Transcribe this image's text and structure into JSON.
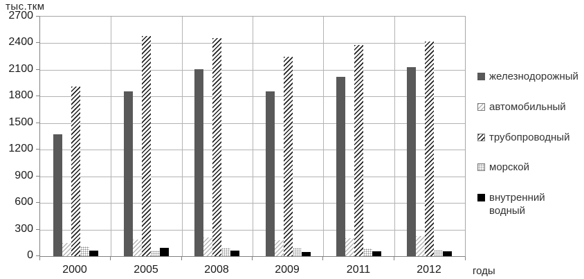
{
  "chart_data": {
    "type": "bar",
    "title": "",
    "xlabel": "годы",
    "ylabel": "тыс.ткм",
    "categories": [
      "2000",
      "2005",
      "2008",
      "2009",
      "2011",
      "2012"
    ],
    "series": [
      {
        "key": "railway",
        "name": "железнодорожный",
        "pattern": "solid-dark",
        "values": [
          1370,
          1860,
          2110,
          1860,
          2020,
          2130
        ]
      },
      {
        "key": "automobile",
        "name": "автомобильный",
        "pattern": "light-hatch",
        "values": [
          150,
          190,
          210,
          180,
          200,
          225
        ]
      },
      {
        "key": "pipeline",
        "name": "трубопроводный",
        "pattern": "dark-hatch",
        "values": [
          1910,
          2480,
          2460,
          2250,
          2380,
          2420
        ]
      },
      {
        "key": "maritime",
        "name": "морской",
        "pattern": "dots",
        "values": [
          110,
          60,
          90,
          90,
          85,
          70
        ]
      },
      {
        "key": "inland-water",
        "name": "внутренний водный",
        "pattern": "solid-black",
        "values": [
          60,
          90,
          60,
          45,
          55,
          55
        ]
      }
    ],
    "ylim": [
      0,
      2700
    ],
    "yticks": [
      0,
      300,
      600,
      900,
      1200,
      1500,
      1800,
      2100,
      2400,
      2700
    ],
    "grid": true,
    "legend_position": "right"
  },
  "colors": {
    "solid_dark": "#595959",
    "solid_black": "#000000",
    "hatch_dark": "#1f1f1f",
    "hatch_light": "#b5b5b5",
    "gridline": "#b3b3b3",
    "axis": "#808080",
    "text": "#262626"
  }
}
